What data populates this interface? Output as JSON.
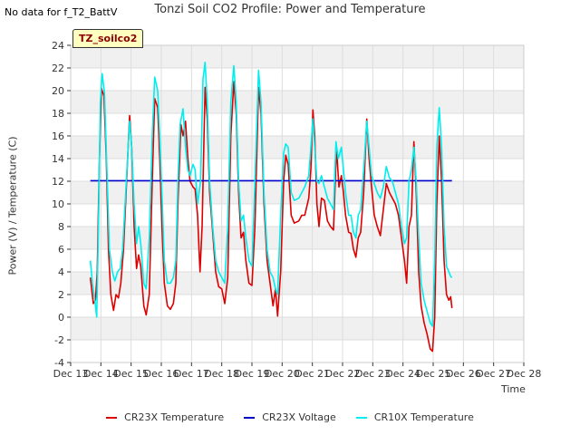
{
  "header": {
    "no_data": "No data for f_T2_BattV",
    "title": "Tonzi Soil CO2 Profile: Power and Temperature"
  },
  "badge": "TZ_soilco2",
  "colors": {
    "CR23X Temperature": "#dd0000",
    "CR23X Voltage": "#0000cc",
    "CR10X Temperature": "#00eeee"
  },
  "chart_data": {
    "type": "line",
    "xlabel": "Time",
    "ylabel": "Power (V) / Temperature (C)",
    "ylim": [
      -4,
      24
    ],
    "xlim": [
      13,
      28
    ],
    "yticks": [
      -4,
      -2,
      0,
      2,
      4,
      6,
      8,
      10,
      12,
      14,
      16,
      18,
      20,
      22,
      24
    ],
    "xticks": [
      {
        "x": 13,
        "label": "Dec 13"
      },
      {
        "x": 14,
        "label": "Dec 14"
      },
      {
        "x": 15,
        "label": "Dec 15"
      },
      {
        "x": 16,
        "label": "Dec 16"
      },
      {
        "x": 17,
        "label": "Dec 17"
      },
      {
        "x": 18,
        "label": "Dec 18"
      },
      {
        "x": 19,
        "label": "Dec 19"
      },
      {
        "x": 20,
        "label": "Dec 20"
      },
      {
        "x": 21,
        "label": "Dec 21"
      },
      {
        "x": 22,
        "label": "Dec 22"
      },
      {
        "x": 23,
        "label": "Dec 23"
      },
      {
        "x": 24,
        "label": "Dec 24"
      },
      {
        "x": 25,
        "label": "Dec 25"
      },
      {
        "x": 26,
        "label": "Dec 26"
      },
      {
        "x": 27,
        "label": "Dec 27"
      },
      {
        "x": 28,
        "label": "Dec 28"
      }
    ],
    "grid": true,
    "legend_position": "bottom",
    "series": [
      {
        "name": "CR23X Temperature",
        "color": "#dd0000",
        "points": [
          [
            13.65,
            3.5
          ],
          [
            13.75,
            1.2
          ],
          [
            13.82,
            1.5
          ],
          [
            13.88,
            4
          ],
          [
            13.95,
            14
          ],
          [
            14.02,
            20.2
          ],
          [
            14.1,
            19.5
          ],
          [
            14.18,
            14
          ],
          [
            14.25,
            6
          ],
          [
            14.33,
            2
          ],
          [
            14.42,
            0.6
          ],
          [
            14.5,
            2
          ],
          [
            14.58,
            1.7
          ],
          [
            14.66,
            3
          ],
          [
            14.75,
            6
          ],
          [
            14.85,
            12
          ],
          [
            14.95,
            17.8
          ],
          [
            15.02,
            15
          ],
          [
            15.1,
            8
          ],
          [
            15.18,
            4.3
          ],
          [
            15.25,
            5.5
          ],
          [
            15.32,
            4.5
          ],
          [
            15.42,
            1
          ],
          [
            15.5,
            0.2
          ],
          [
            15.6,
            2
          ],
          [
            15.7,
            12
          ],
          [
            15.78,
            19.3
          ],
          [
            15.88,
            18.5
          ],
          [
            15.95,
            14
          ],
          [
            16.02,
            8
          ],
          [
            16.1,
            3
          ],
          [
            16.2,
            1
          ],
          [
            16.3,
            0.7
          ],
          [
            16.4,
            1.2
          ],
          [
            16.48,
            3
          ],
          [
            16.55,
            10
          ],
          [
            16.65,
            17
          ],
          [
            16.72,
            16
          ],
          [
            16.8,
            17.3
          ],
          [
            16.88,
            14
          ],
          [
            16.95,
            12
          ],
          [
            17.05,
            11.5
          ],
          [
            17.12,
            11.3
          ],
          [
            17.2,
            9
          ],
          [
            17.28,
            4
          ],
          [
            17.35,
            8
          ],
          [
            17.45,
            20.3
          ],
          [
            17.52,
            17.5
          ],
          [
            17.6,
            11
          ],
          [
            17.7,
            7.5
          ],
          [
            17.8,
            4
          ],
          [
            17.9,
            2.7
          ],
          [
            18.0,
            2.5
          ],
          [
            18.1,
            1.2
          ],
          [
            18.2,
            3.5
          ],
          [
            18.3,
            16
          ],
          [
            18.4,
            20.8
          ],
          [
            18.48,
            18
          ],
          [
            18.56,
            11
          ],
          [
            18.64,
            7
          ],
          [
            18.72,
            7.5
          ],
          [
            18.8,
            5
          ],
          [
            18.9,
            3
          ],
          [
            19.0,
            2.8
          ],
          [
            19.1,
            8
          ],
          [
            19.22,
            20.3
          ],
          [
            19.3,
            18
          ],
          [
            19.4,
            10
          ],
          [
            19.5,
            5
          ],
          [
            19.6,
            3
          ],
          [
            19.7,
            1
          ],
          [
            19.78,
            2.5
          ],
          [
            19.85,
            0.1
          ],
          [
            19.95,
            4
          ],
          [
            20.05,
            12
          ],
          [
            20.12,
            14.3
          ],
          [
            20.2,
            13.5
          ],
          [
            20.3,
            9
          ],
          [
            20.4,
            8.3
          ],
          [
            20.55,
            8.5
          ],
          [
            20.65,
            9
          ],
          [
            20.75,
            9
          ],
          [
            20.88,
            10.5
          ],
          [
            20.95,
            13
          ],
          [
            21.02,
            18.3
          ],
          [
            21.08,
            16
          ],
          [
            21.15,
            10
          ],
          [
            21.22,
            8
          ],
          [
            21.3,
            10.5
          ],
          [
            21.4,
            10.3
          ],
          [
            21.5,
            8.5
          ],
          [
            21.6,
            8
          ],
          [
            21.7,
            7.7
          ],
          [
            21.8,
            15
          ],
          [
            21.88,
            11.5
          ],
          [
            21.96,
            12.5
          ],
          [
            22.03,
            11
          ],
          [
            22.1,
            9
          ],
          [
            22.2,
            7.5
          ],
          [
            22.28,
            7.4
          ],
          [
            22.36,
            6
          ],
          [
            22.44,
            5.3
          ],
          [
            22.52,
            7
          ],
          [
            22.6,
            7.5
          ],
          [
            22.7,
            11
          ],
          [
            22.8,
            17.5
          ],
          [
            22.88,
            14
          ],
          [
            22.96,
            11.5
          ],
          [
            23.05,
            9
          ],
          [
            23.15,
            8
          ],
          [
            23.25,
            7.2
          ],
          [
            23.35,
            9.5
          ],
          [
            23.45,
            11.8
          ],
          [
            23.55,
            11
          ],
          [
            23.65,
            10.5
          ],
          [
            23.75,
            10
          ],
          [
            23.85,
            9
          ],
          [
            23.95,
            7
          ],
          [
            24.05,
            5
          ],
          [
            24.12,
            3
          ],
          [
            24.2,
            8
          ],
          [
            24.28,
            9
          ],
          [
            24.36,
            15.5
          ],
          [
            24.44,
            11
          ],
          [
            24.52,
            4
          ],
          [
            24.6,
            1
          ],
          [
            24.7,
            -0.5
          ],
          [
            24.8,
            -1.5
          ],
          [
            24.9,
            -2.8
          ],
          [
            24.98,
            -3
          ],
          [
            25.05,
            0
          ],
          [
            25.12,
            10
          ],
          [
            25.2,
            16
          ],
          [
            25.28,
            12
          ],
          [
            25.36,
            5
          ],
          [
            25.44,
            2
          ],
          [
            25.52,
            1.5
          ],
          [
            25.58,
            1.8
          ],
          [
            25.62,
            0.8
          ]
        ]
      },
      {
        "name": "CR23X Voltage",
        "color": "#0000cc",
        "points": [
          [
            13.65,
            12.05
          ],
          [
            25.62,
            12.05
          ]
        ]
      },
      {
        "name": "CR10X Temperature",
        "color": "#00eeee",
        "points": [
          [
            13.65,
            5
          ],
          [
            13.72,
            3
          ],
          [
            13.8,
            1.5
          ],
          [
            13.86,
            0
          ],
          [
            13.92,
            8
          ],
          [
            13.98,
            19
          ],
          [
            14.04,
            21.5
          ],
          [
            14.12,
            19.8
          ],
          [
            14.2,
            13
          ],
          [
            14.28,
            6
          ],
          [
            14.38,
            4
          ],
          [
            14.46,
            3.2
          ],
          [
            14.55,
            4
          ],
          [
            14.64,
            4.3
          ],
          [
            14.72,
            6
          ],
          [
            14.82,
            11
          ],
          [
            14.95,
            17.3
          ],
          [
            15.02,
            15
          ],
          [
            15.1,
            10
          ],
          [
            15.18,
            6.5
          ],
          [
            15.25,
            8
          ],
          [
            15.32,
            6.5
          ],
          [
            15.42,
            3
          ],
          [
            15.5,
            2.5
          ],
          [
            15.6,
            7
          ],
          [
            15.7,
            16
          ],
          [
            15.78,
            21.2
          ],
          [
            15.88,
            20
          ],
          [
            15.95,
            16
          ],
          [
            16.02,
            11
          ],
          [
            16.1,
            5
          ],
          [
            16.2,
            3
          ],
          [
            16.3,
            3
          ],
          [
            16.4,
            3.5
          ],
          [
            16.48,
            5
          ],
          [
            16.55,
            12
          ],
          [
            16.62,
            17
          ],
          [
            16.72,
            18.4
          ],
          [
            16.8,
            15
          ],
          [
            16.88,
            13
          ],
          [
            16.95,
            12.5
          ],
          [
            17.05,
            13.5
          ],
          [
            17.12,
            13
          ],
          [
            17.2,
            10
          ],
          [
            17.3,
            12
          ],
          [
            17.38,
            21
          ],
          [
            17.45,
            22.5
          ],
          [
            17.52,
            19
          ],
          [
            17.6,
            12
          ],
          [
            17.7,
            8
          ],
          [
            17.8,
            5
          ],
          [
            17.9,
            4
          ],
          [
            18.0,
            3.5
          ],
          [
            18.1,
            3
          ],
          [
            18.2,
            8
          ],
          [
            18.3,
            19
          ],
          [
            18.4,
            22.2
          ],
          [
            18.48,
            19
          ],
          [
            18.56,
            12
          ],
          [
            18.64,
            8.5
          ],
          [
            18.72,
            9
          ],
          [
            18.8,
            7
          ],
          [
            18.9,
            5
          ],
          [
            19.0,
            4.5
          ],
          [
            19.1,
            12
          ],
          [
            19.22,
            21.8
          ],
          [
            19.3,
            19
          ],
          [
            19.4,
            11
          ],
          [
            19.5,
            6
          ],
          [
            19.6,
            4
          ],
          [
            19.7,
            3.5
          ],
          [
            19.78,
            2.5
          ],
          [
            19.85,
            2
          ],
          [
            19.95,
            9
          ],
          [
            20.05,
            14.5
          ],
          [
            20.12,
            15.3
          ],
          [
            20.2,
            15
          ],
          [
            20.3,
            11
          ],
          [
            20.4,
            10.3
          ],
          [
            20.55,
            10.5
          ],
          [
            20.65,
            11
          ],
          [
            20.75,
            11.5
          ],
          [
            20.88,
            12.5
          ],
          [
            20.95,
            15
          ],
          [
            21.02,
            17.5
          ],
          [
            21.08,
            15
          ],
          [
            21.15,
            12
          ],
          [
            21.22,
            11.8
          ],
          [
            21.3,
            12.5
          ],
          [
            21.4,
            11.5
          ],
          [
            21.5,
            10.5
          ],
          [
            21.6,
            10
          ],
          [
            21.7,
            9.5
          ],
          [
            21.78,
            15.5
          ],
          [
            21.86,
            14
          ],
          [
            21.96,
            15
          ],
          [
            22.03,
            13
          ],
          [
            22.1,
            11
          ],
          [
            22.2,
            9
          ],
          [
            22.28,
            9
          ],
          [
            22.36,
            7.5
          ],
          [
            22.44,
            7
          ],
          [
            22.52,
            9
          ],
          [
            22.6,
            9.5
          ],
          [
            22.7,
            13
          ],
          [
            22.8,
            17.3
          ],
          [
            22.88,
            15
          ],
          [
            22.96,
            12.5
          ],
          [
            23.05,
            11.8
          ],
          [
            23.15,
            11
          ],
          [
            23.25,
            10.5
          ],
          [
            23.35,
            11.5
          ],
          [
            23.45,
            13.3
          ],
          [
            23.55,
            12.3
          ],
          [
            23.65,
            12
          ],
          [
            23.75,
            11
          ],
          [
            23.85,
            10
          ],
          [
            23.95,
            8
          ],
          [
            24.05,
            6.5
          ],
          [
            24.12,
            7
          ],
          [
            24.2,
            12
          ],
          [
            24.28,
            13
          ],
          [
            24.36,
            15
          ],
          [
            24.44,
            12
          ],
          [
            24.52,
            7
          ],
          [
            24.6,
            3
          ],
          [
            24.7,
            1.5
          ],
          [
            24.8,
            0.5
          ],
          [
            24.9,
            -0.5
          ],
          [
            24.98,
            -0.8
          ],
          [
            25.05,
            5
          ],
          [
            25.12,
            15
          ],
          [
            25.2,
            18.5
          ],
          [
            25.28,
            15
          ],
          [
            25.36,
            8
          ],
          [
            25.44,
            4.5
          ],
          [
            25.52,
            4
          ],
          [
            25.58,
            3.6
          ],
          [
            25.62,
            3.5
          ]
        ]
      }
    ]
  }
}
